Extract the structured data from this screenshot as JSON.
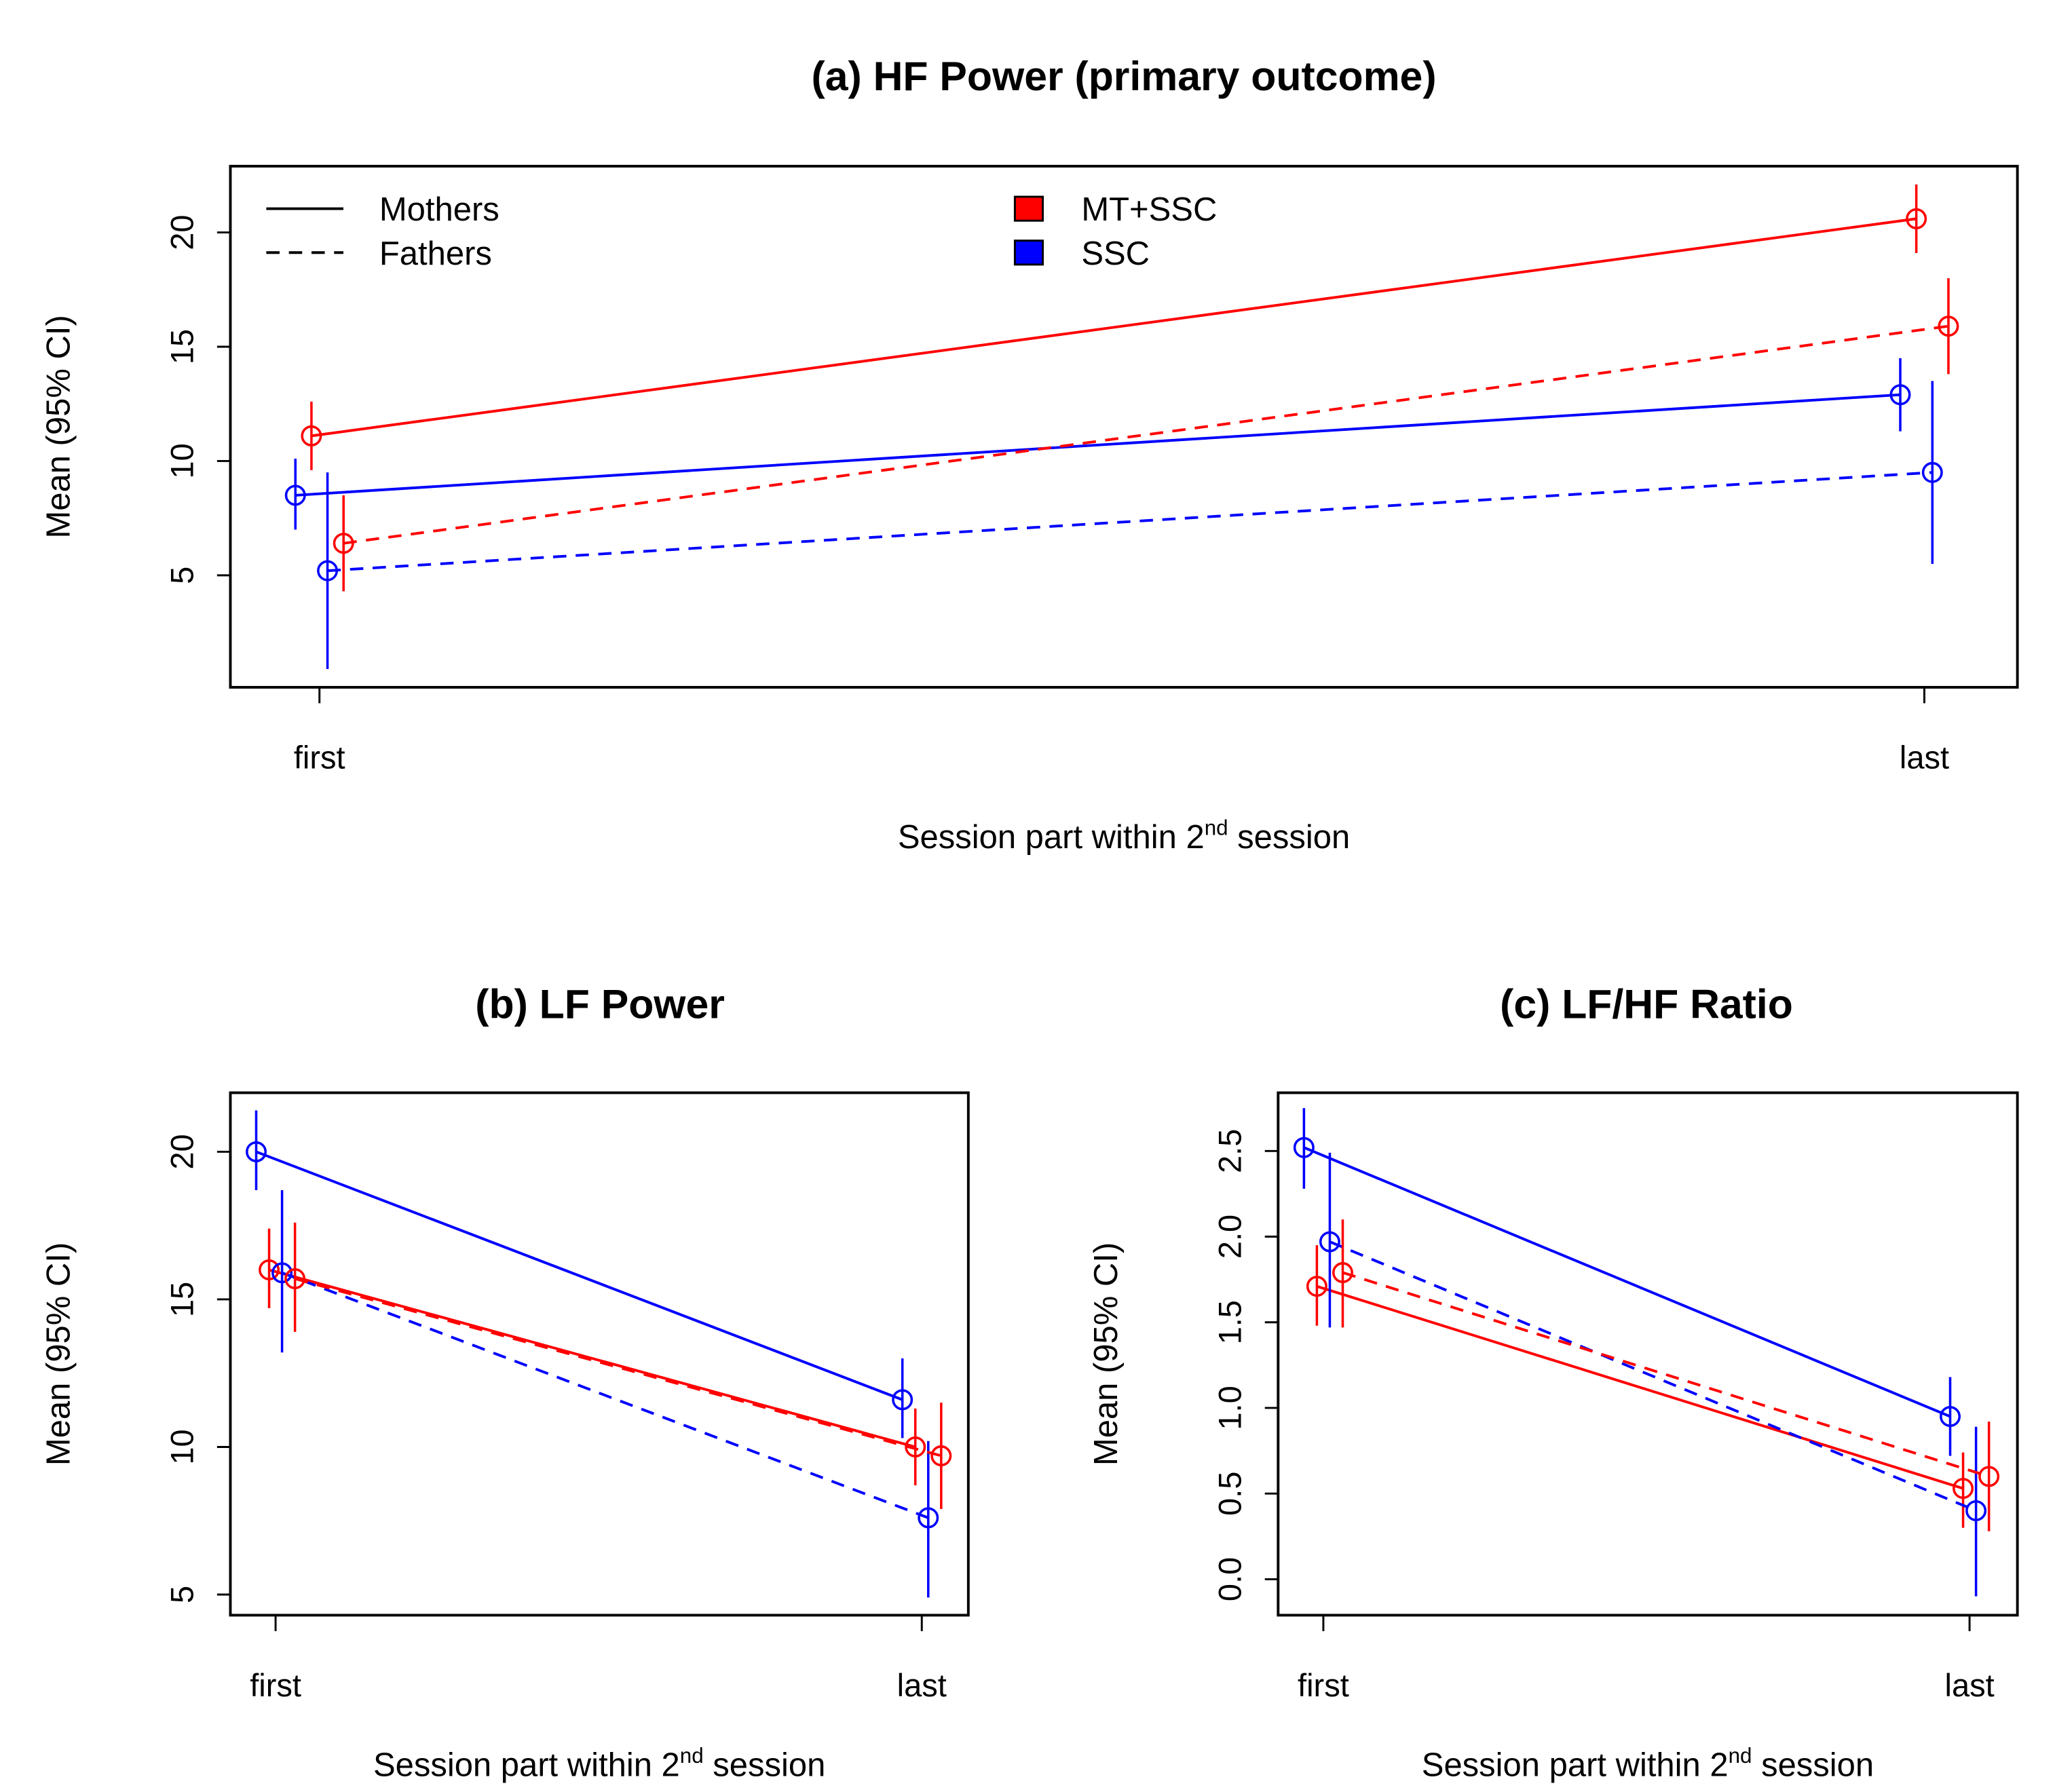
{
  "chart_data": [
    {
      "type": "line",
      "title": "(a) HF Power (primary outcome)",
      "xlabel_pre": "Session part within 2",
      "xlabel_sup": "nd",
      "xlabel_post": " session",
      "ylabel": "Mean (95% CI)",
      "categories": [
        "first",
        "last"
      ],
      "yticks": [
        5,
        10,
        15,
        20
      ],
      "ylim": [
        0.1,
        22.9
      ],
      "legend": {
        "placement": "top",
        "linetypes": [
          {
            "label": "Mothers",
            "dash": false
          },
          {
            "label": "Fathers",
            "dash": true
          }
        ],
        "groups": [
          {
            "label": "MT+SSC",
            "color": "#ff0000"
          },
          {
            "label": "SSC",
            "color": "#0000ff"
          }
        ]
      },
      "series": [
        {
          "name": "SSC Mothers",
          "color": "#0000ff",
          "dash": false,
          "offset": -0.015,
          "values": [
            8.5,
            12.9
          ],
          "ci": [
            [
              7.0,
              10.1
            ],
            [
              11.3,
              14.5
            ]
          ]
        },
        {
          "name": "MT+SSC Mothers",
          "color": "#ff0000",
          "dash": false,
          "offset": -0.005,
          "values": [
            11.1,
            20.6
          ],
          "ci": [
            [
              9.6,
              12.6
            ],
            [
              19.1,
              22.1
            ]
          ]
        },
        {
          "name": "SSC Fathers",
          "color": "#0000ff",
          "dash": true,
          "offset": 0.005,
          "values": [
            5.2,
            9.5
          ],
          "ci": [
            [
              0.9,
              9.5
            ],
            [
              5.5,
              13.5
            ]
          ]
        },
        {
          "name": "MT+SSC Fathers",
          "color": "#ff0000",
          "dash": true,
          "offset": 0.015,
          "values": [
            6.4,
            15.9
          ],
          "ci": [
            [
              4.3,
              8.5
            ],
            [
              13.8,
              18.0
            ]
          ]
        }
      ]
    },
    {
      "type": "line",
      "title": "(b) LF Power",
      "xlabel_pre": "Session part within 2",
      "xlabel_sup": "nd",
      "xlabel_post": " session",
      "ylabel": "Mean (95% CI)",
      "categories": [
        "first",
        "last"
      ],
      "yticks": [
        5,
        10,
        15,
        20
      ],
      "ylim": [
        4.3,
        22.0
      ],
      "series": [
        {
          "name": "SSC Mothers",
          "color": "#0000ff",
          "dash": false,
          "offset": -0.03,
          "values": [
            20.0,
            11.6
          ],
          "ci": [
            [
              18.7,
              21.4
            ],
            [
              10.3,
              13.0
            ]
          ]
        },
        {
          "name": "MT+SSC Mothers",
          "color": "#ff0000",
          "dash": false,
          "offset": -0.01,
          "values": [
            16.0,
            10.0
          ],
          "ci": [
            [
              14.7,
              17.4
            ],
            [
              8.7,
              11.3
            ]
          ]
        },
        {
          "name": "SSC Fathers",
          "color": "#0000ff",
          "dash": true,
          "offset": 0.01,
          "values": [
            15.9,
            7.6
          ],
          "ci": [
            [
              13.2,
              18.7
            ],
            [
              4.9,
              10.2
            ]
          ]
        },
        {
          "name": "MT+SSC Fathers",
          "color": "#ff0000",
          "dash": true,
          "offset": 0.03,
          "values": [
            15.7,
            9.7
          ],
          "ci": [
            [
              13.9,
              17.6
            ],
            [
              7.9,
              11.5
            ]
          ]
        }
      ]
    },
    {
      "type": "line",
      "title": "(c) LF/HF Ratio",
      "xlabel_pre": "Session part within 2",
      "xlabel_sup": "nd",
      "xlabel_post": " session",
      "ylabel": "Mean (95% CI)",
      "categories": [
        "first",
        "last"
      ],
      "yticks": [
        "0.0",
        "0.5",
        "1.0",
        "1.5",
        "2.0",
        "2.5"
      ],
      "ylim": [
        -0.21,
        2.84
      ],
      "series": [
        {
          "name": "SSC Mothers",
          "color": "#0000ff",
          "dash": false,
          "offset": -0.03,
          "values": [
            2.52,
            0.95
          ],
          "ci": [
            [
              2.28,
              2.75
            ],
            [
              0.72,
              1.18
            ]
          ]
        },
        {
          "name": "MT+SSC Mothers",
          "color": "#ff0000",
          "dash": false,
          "offset": -0.01,
          "values": [
            1.71,
            0.53
          ],
          "ci": [
            [
              1.48,
              1.95
            ],
            [
              0.3,
              0.74
            ]
          ]
        },
        {
          "name": "SSC Fathers",
          "color": "#0000ff",
          "dash": true,
          "offset": 0.01,
          "values": [
            1.97,
            0.4
          ],
          "ci": [
            [
              1.47,
              2.49
            ],
            [
              -0.1,
              0.89
            ]
          ]
        },
        {
          "name": "MT+SSC Fathers",
          "color": "#ff0000",
          "dash": true,
          "offset": 0.03,
          "values": [
            1.79,
            0.6
          ],
          "ci": [
            [
              1.47,
              2.1
            ],
            [
              0.28,
              0.92
            ]
          ]
        }
      ]
    }
  ]
}
